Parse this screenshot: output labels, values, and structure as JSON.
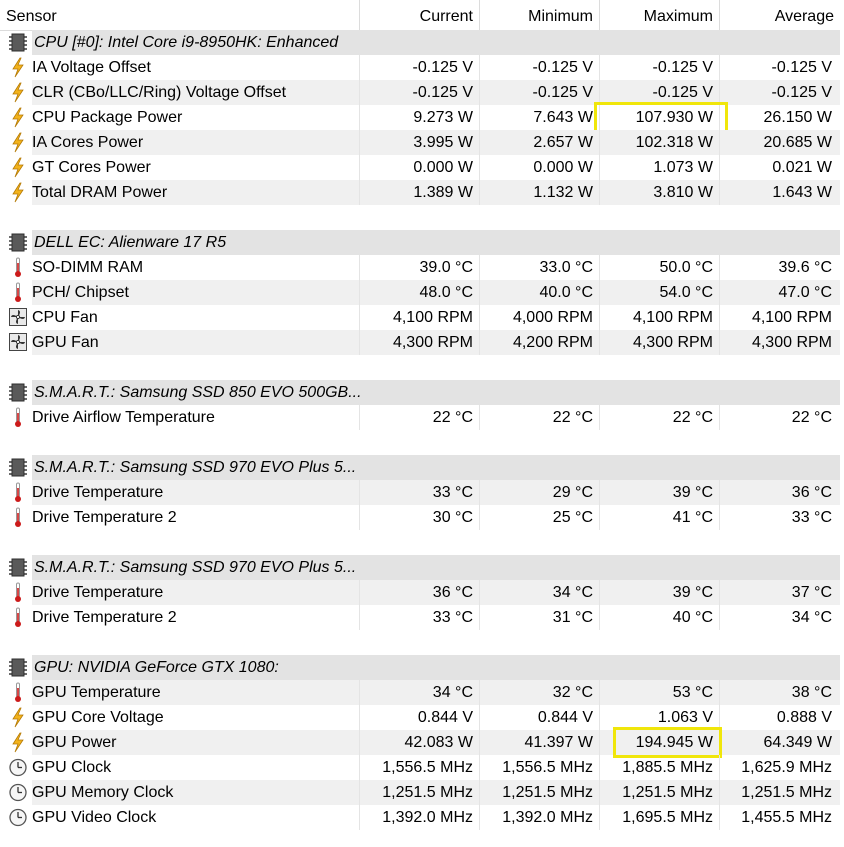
{
  "columns": {
    "sensor": "Sensor",
    "current": "Current",
    "minimum": "Minimum",
    "maximum": "Maximum",
    "average": "Average"
  },
  "highlight_color": "#f0e60a",
  "rows": [
    {
      "type": "group",
      "icon": "chip-icon",
      "label": "CPU [#0]: Intel Core i9-8950HK: Enhanced"
    },
    {
      "type": "sensor",
      "icon": "voltage-icon",
      "label": "IA Voltage Offset",
      "current": "-0.125 V",
      "minimum": "-0.125 V",
      "maximum": "-0.125 V",
      "average": "-0.125 V"
    },
    {
      "type": "sensor",
      "icon": "voltage-icon",
      "label": "CLR (CBo/LLC/Ring) Voltage Offset",
      "current": "-0.125 V",
      "minimum": "-0.125 V",
      "maximum": "-0.125 V",
      "average": "-0.125 V"
    },
    {
      "type": "sensor",
      "icon": "voltage-icon",
      "label": "CPU Package Power",
      "current": "9.273 W",
      "minimum": "7.643 W",
      "maximum": "107.930 W",
      "average": "26.150 W",
      "highlight_max": true
    },
    {
      "type": "sensor",
      "icon": "voltage-icon",
      "label": "IA Cores Power",
      "current": "3.995 W",
      "minimum": "2.657 W",
      "maximum": "102.318 W",
      "average": "20.685 W"
    },
    {
      "type": "sensor",
      "icon": "voltage-icon",
      "label": "GT Cores Power",
      "current": "0.000 W",
      "minimum": "0.000 W",
      "maximum": "1.073 W",
      "average": "0.021 W"
    },
    {
      "type": "sensor",
      "icon": "voltage-icon",
      "label": "Total DRAM Power",
      "current": "1.389 W",
      "minimum": "1.132 W",
      "maximum": "3.810 W",
      "average": "1.643 W"
    },
    {
      "type": "blank"
    },
    {
      "type": "group",
      "icon": "chip-icon",
      "label": "DELL EC: Alienware 17 R5"
    },
    {
      "type": "sensor",
      "icon": "thermometer-icon",
      "label": "SO-DIMM RAM",
      "current": "39.0 °C",
      "minimum": "33.0 °C",
      "maximum": "50.0 °C",
      "average": "39.6 °C"
    },
    {
      "type": "sensor",
      "icon": "thermometer-icon",
      "label": "PCH/ Chipset",
      "current": "48.0 °C",
      "minimum": "40.0 °C",
      "maximum": "54.0 °C",
      "average": "47.0 °C"
    },
    {
      "type": "sensor",
      "icon": "fan-icon",
      "label": "CPU Fan",
      "current": "4,100 RPM",
      "minimum": "4,000 RPM",
      "maximum": "4,100 RPM",
      "average": "4,100 RPM"
    },
    {
      "type": "sensor",
      "icon": "fan-icon",
      "label": "GPU Fan",
      "current": "4,300 RPM",
      "minimum": "4,200 RPM",
      "maximum": "4,300 RPM",
      "average": "4,300 RPM"
    },
    {
      "type": "blank"
    },
    {
      "type": "group",
      "icon": "chip-icon",
      "label": "S.M.A.R.T.: Samsung SSD 850 EVO 500GB..."
    },
    {
      "type": "sensor",
      "icon": "thermometer-icon",
      "label": "Drive Airflow Temperature",
      "current": "22 °C",
      "minimum": "22 °C",
      "maximum": "22 °C",
      "average": "22 °C"
    },
    {
      "type": "blank"
    },
    {
      "type": "group",
      "icon": "chip-icon",
      "label": "S.M.A.R.T.: Samsung SSD 970 EVO Plus 5..."
    },
    {
      "type": "sensor",
      "icon": "thermometer-icon",
      "label": "Drive Temperature",
      "current": "33 °C",
      "minimum": "29 °C",
      "maximum": "39 °C",
      "average": "36 °C"
    },
    {
      "type": "sensor",
      "icon": "thermometer-icon",
      "label": "Drive Temperature 2",
      "current": "30 °C",
      "minimum": "25 °C",
      "maximum": "41 °C",
      "average": "33 °C"
    },
    {
      "type": "blank"
    },
    {
      "type": "group",
      "icon": "chip-icon",
      "label": "S.M.A.R.T.: Samsung SSD 970 EVO Plus 5..."
    },
    {
      "type": "sensor",
      "icon": "thermometer-icon",
      "label": "Drive Temperature",
      "current": "36 °C",
      "minimum": "34 °C",
      "maximum": "39 °C",
      "average": "37 °C"
    },
    {
      "type": "sensor",
      "icon": "thermometer-icon",
      "label": "Drive Temperature 2",
      "current": "33 °C",
      "minimum": "31 °C",
      "maximum": "40 °C",
      "average": "34 °C"
    },
    {
      "type": "blank"
    },
    {
      "type": "group",
      "icon": "chip-icon",
      "label": "GPU: NVIDIA GeForce GTX 1080:"
    },
    {
      "type": "sensor",
      "icon": "thermometer-icon",
      "label": "GPU Temperature",
      "current": "34 °C",
      "minimum": "32 °C",
      "maximum": "53 °C",
      "average": "38 °C"
    },
    {
      "type": "sensor",
      "icon": "voltage-icon",
      "label": "GPU Core Voltage",
      "current": "0.844 V",
      "minimum": "0.844 V",
      "maximum": "1.063 V",
      "average": "0.888 V"
    },
    {
      "type": "sensor",
      "icon": "voltage-icon",
      "label": "GPU Power",
      "current": "42.083 W",
      "minimum": "41.397 W",
      "maximum": "194.945 W",
      "average": "64.349 W",
      "highlight_max": true
    },
    {
      "type": "sensor",
      "icon": "clock-icon",
      "label": "GPU Clock",
      "current": "1,556.5 MHz",
      "minimum": "1,556.5 MHz",
      "maximum": "1,885.5 MHz",
      "average": "1,625.9 MHz"
    },
    {
      "type": "sensor",
      "icon": "clock-icon",
      "label": "GPU Memory Clock",
      "current": "1,251.5 MHz",
      "minimum": "1,251.5 MHz",
      "maximum": "1,251.5 MHz",
      "average": "1,251.5 MHz"
    },
    {
      "type": "sensor",
      "icon": "clock-icon",
      "label": "GPU Video Clock",
      "current": "1,392.0 MHz",
      "minimum": "1,392.0 MHz",
      "maximum": "1,695.5 MHz",
      "average": "1,455.5 MHz"
    }
  ]
}
